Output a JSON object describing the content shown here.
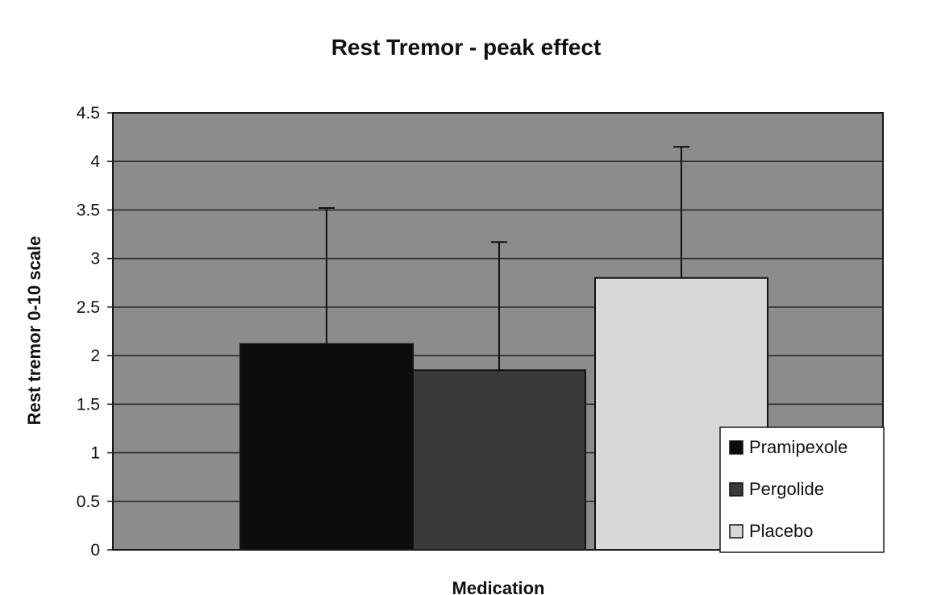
{
  "chart_data": {
    "type": "bar",
    "title": "Rest Tremor - peak effect",
    "xlabel": "Medication",
    "ylabel": "Rest tremor 0-10 scale",
    "ylim": [
      0,
      4.5
    ],
    "yticks": [
      "0",
      "0.5",
      "1",
      "1.5",
      "2",
      "2.5",
      "3",
      "3.5",
      "4",
      "4.5"
    ],
    "grid": true,
    "legend_position": "bottom-right",
    "series": [
      {
        "name": "Pramipexole",
        "value": 2.12,
        "error_upper": 3.52,
        "color": "#0d0d0d"
      },
      {
        "name": "Pergolide",
        "value": 1.85,
        "error_upper": 3.17,
        "color": "#3a3a3a"
      },
      {
        "name": "Placebo",
        "value": 2.8,
        "error_upper": 4.15,
        "color": "#d8d8d8"
      }
    ],
    "plot_background": "#8c8c8c"
  }
}
